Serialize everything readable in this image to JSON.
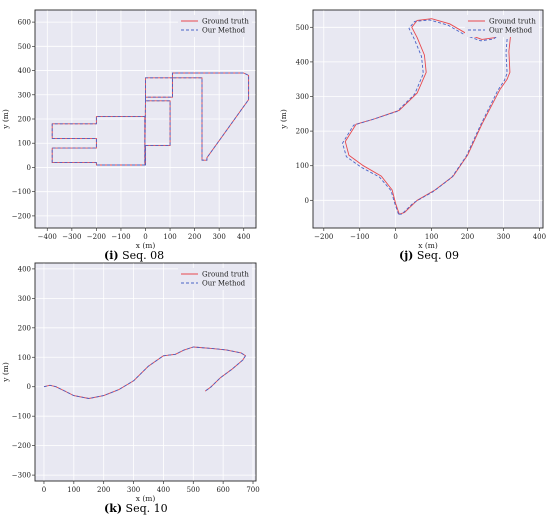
{
  "chart_data": [
    {
      "type": "line",
      "caption_letter": "(i)",
      "caption_text": " Seq. 08",
      "xlabel": "x (m)",
      "ylabel": "y (m)",
      "xlim": [
        -450,
        450
      ],
      "ylim": [
        -250,
        650
      ],
      "xticks": [
        -400,
        -300,
        -200,
        -100,
        0,
        100,
        200,
        300,
        400
      ],
      "yticks": [
        -200,
        -100,
        0,
        100,
        200,
        300,
        400,
        500,
        600
      ],
      "grid": true,
      "legend_position": "top-right",
      "series": [
        {
          "name": "Ground truth",
          "color": "#e8484d",
          "style": "solid",
          "x": [
            0,
            0,
            -3,
            -200,
            -200,
            -380,
            -380,
            -200,
            -200,
            -380,
            -380,
            -200,
            -200,
            -3,
            -3,
            0,
            0,
            100,
            100,
            0,
            0,
            110,
            110,
            230,
            230,
            250,
            250,
            420,
            420,
            400,
            110,
            110,
            0,
            0
          ],
          "y": [
            300,
            285,
            10,
            10,
            20,
            20,
            80,
            80,
            120,
            120,
            180,
            180,
            210,
            210,
            20,
            10,
            90,
            90,
            275,
            275,
            290,
            290,
            370,
            370,
            30,
            30,
            40,
            280,
            380,
            390,
            390,
            370,
            370,
            300
          ]
        },
        {
          "name": "Our Method",
          "color": "#4a63c7",
          "style": "dashed",
          "x": [
            0,
            0,
            -3,
            -200,
            -200,
            -380,
            -380,
            -200,
            -200,
            -380,
            -380,
            -200,
            -200,
            -3,
            -3,
            0,
            0,
            100,
            100,
            0,
            0,
            110,
            110,
            230,
            230,
            250,
            250,
            420,
            420,
            400,
            110,
            110,
            0,
            0
          ],
          "y": [
            300,
            285,
            10,
            10,
            20,
            20,
            80,
            80,
            120,
            120,
            180,
            180,
            210,
            210,
            20,
            10,
            90,
            90,
            275,
            275,
            290,
            290,
            370,
            370,
            30,
            30,
            40,
            280,
            380,
            390,
            390,
            370,
            370,
            300
          ]
        }
      ]
    },
    {
      "type": "line",
      "caption_letter": "(j)",
      "caption_text": " Seq. 09",
      "xlabel": "x (m)",
      "ylabel": "y (m)",
      "xlim": [
        -230,
        410
      ],
      "ylim": [
        -80,
        550
      ],
      "xticks": [
        -200,
        -100,
        0,
        100,
        200,
        300,
        400
      ],
      "yticks": [
        0,
        100,
        200,
        300,
        400,
        500
      ],
      "grid": true,
      "legend_position": "top-right",
      "series": [
        {
          "name": "Ground truth",
          "color": "#e8484d",
          "style": "solid",
          "x": [
            10,
            0,
            -10,
            -40,
            -90,
            -130,
            -140,
            -110,
            -60,
            10,
            60,
            85,
            80,
            60,
            45,
            60,
            100,
            150,
            200,
            240,
            275,
            300,
            320,
            315,
            318,
            310,
            290,
            240,
            200,
            160,
            110,
            60,
            40,
            25,
            10
          ],
          "y": [
            -40,
            -10,
            30,
            70,
            100,
            130,
            170,
            220,
            235,
            260,
            310,
            370,
            420,
            470,
            500,
            520,
            525,
            510,
            480,
            465,
            470,
            490,
            480,
            430,
            370,
            350,
            320,
            220,
            130,
            70,
            30,
            0,
            -20,
            -35,
            -40
          ]
        },
        {
          "name": "Our Method",
          "color": "#4a63c7",
          "style": "dashed",
          "x": [
            8,
            -2,
            -13,
            -45,
            -95,
            -137,
            -148,
            -117,
            -66,
            4,
            53,
            77,
            72,
            52,
            37,
            53,
            95,
            146,
            196,
            237,
            272,
            296,
            311,
            307,
            310,
            303,
            284,
            236,
            196,
            156,
            104,
            50,
            30,
            17,
            8
          ],
          "y": [
            -40,
            -10,
            28,
            67,
            95,
            126,
            165,
            217,
            233,
            257,
            307,
            366,
            416,
            466,
            497,
            517,
            521,
            506,
            476,
            461,
            466,
            485,
            476,
            427,
            367,
            347,
            317,
            217,
            127,
            66,
            25,
            -7,
            -27,
            -40,
            -40
          ]
        }
      ]
    },
    {
      "type": "line",
      "caption_letter": "(k)",
      "caption_text": " Seq. 10",
      "xlabel": "x (m)",
      "ylabel": "y (m)",
      "xlim": [
        -30,
        710
      ],
      "ylim": [
        -320,
        420
      ],
      "xticks": [
        0,
        100,
        200,
        300,
        400,
        500,
        600,
        700
      ],
      "yticks": [
        -300,
        -200,
        -100,
        0,
        100,
        200,
        300,
        400
      ],
      "grid": true,
      "legend_position": "top-right",
      "series": [
        {
          "name": "Ground truth",
          "color": "#e8484d",
          "style": "solid",
          "x": [
            0,
            20,
            40,
            70,
            100,
            150,
            200,
            250,
            300,
            350,
            400,
            440,
            470,
            500,
            560,
            610,
            660,
            675,
            665,
            630,
            590,
            560,
            540
          ],
          "y": [
            0,
            5,
            0,
            -15,
            -30,
            -40,
            -30,
            -10,
            20,
            70,
            105,
            110,
            125,
            135,
            130,
            125,
            115,
            105,
            90,
            60,
            30,
            0,
            -15
          ]
        },
        {
          "name": "Our Method",
          "color": "#4a63c7",
          "style": "dashed",
          "x": [
            0,
            20,
            40,
            70,
            100,
            150,
            200,
            250,
            300,
            350,
            400,
            440,
            470,
            500,
            560,
            610,
            660,
            675,
            665,
            630,
            590,
            560,
            540
          ],
          "y": [
            0,
            5,
            0,
            -15,
            -30,
            -40,
            -30,
            -10,
            20,
            70,
            105,
            110,
            125,
            135,
            130,
            125,
            115,
            105,
            90,
            60,
            30,
            0,
            -15
          ]
        }
      ]
    }
  ]
}
